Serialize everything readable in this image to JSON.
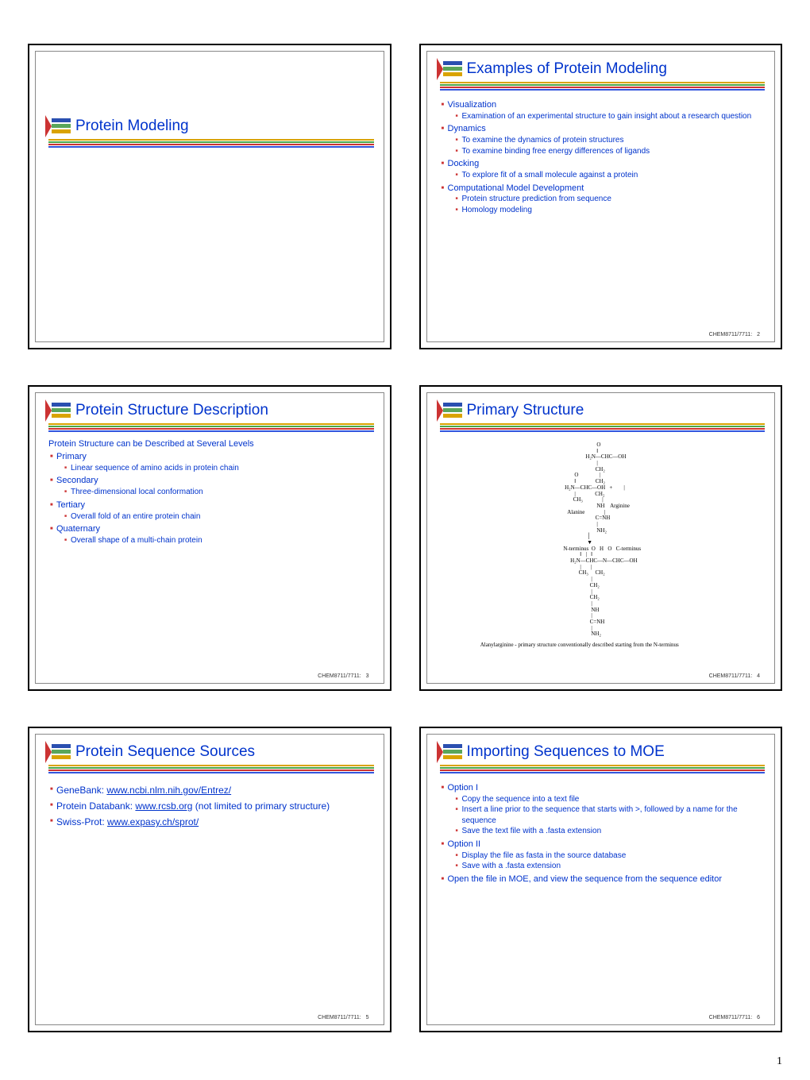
{
  "page_number": "1",
  "course_code": "CHEM8711/7711:",
  "theme": {
    "title_color": "#0033cc",
    "bullet_color": "#cc3333",
    "body_text_color": "#0033cc",
    "slide_border_color": "#000000",
    "inner_border_color": "#888888",
    "background": "#ffffff",
    "rule_colors": [
      "#d9a300",
      "#4aa64a",
      "#cc3333",
      "#3355dd"
    ],
    "title_fontsize": 19,
    "body_fontsize": 11,
    "sub_fontsize": 10,
    "footer_fontsize": 7
  },
  "logo": {
    "stripe_colors": [
      "#2a4fb0",
      "#5aa65a",
      "#d9a300"
    ],
    "caret_color": "#cc3333"
  },
  "slides": [
    {
      "num": "",
      "title": "Protein Modeling",
      "title_only": true
    },
    {
      "num": "2",
      "title": "Examples of Protein Modeling",
      "bullets": [
        {
          "lvl": 1,
          "text": "Visualization"
        },
        {
          "lvl": 2,
          "text": "Examination of an experimental structure to gain insight about a research question"
        },
        {
          "lvl": 1,
          "text": "Dynamics"
        },
        {
          "lvl": 2,
          "text": "To examine the dynamics of protein structures"
        },
        {
          "lvl": 2,
          "text": "To examine binding free energy differences of ligands"
        },
        {
          "lvl": 1,
          "text": "Docking"
        },
        {
          "lvl": 2,
          "text": "To explore fit of a small molecule against a protein"
        },
        {
          "lvl": 1,
          "text": "Computational Model Development"
        },
        {
          "lvl": 2,
          "text": "Protein structure prediction from sequence"
        },
        {
          "lvl": 2,
          "text": "Homology modeling"
        }
      ]
    },
    {
      "num": "3",
      "title": "Protein Structure Description",
      "subtitle": "Protein Structure can be Described at Several Levels",
      "bullets": [
        {
          "lvl": 1,
          "text": "Primary"
        },
        {
          "lvl": 2,
          "text": "Linear sequence of amino acids in protein chain"
        },
        {
          "lvl": 1,
          "text": "Secondary"
        },
        {
          "lvl": 2,
          "text": "Three-dimensional local conformation"
        },
        {
          "lvl": 1,
          "text": "Tertiary"
        },
        {
          "lvl": 2,
          "text": "Overall fold of an entire protein chain"
        },
        {
          "lvl": 1,
          "text": "Quaternary"
        },
        {
          "lvl": 2,
          "text": "Overall shape of a multi-chain protein"
        }
      ]
    },
    {
      "num": "4",
      "title": "Primary Structure",
      "chem": {
        "alanine_label": "Alanine",
        "arginine_label": "Arginine",
        "n_term": "N-terminus",
        "c_term": "C-terminus",
        "caption": "Alanylarginine - primary structure conventionally described starting from the N-terminus",
        "ascii": [
          "                        O",
          "                        ‖",
          "                H₂N—CHC—OH",
          "                        |",
          "                       CH₂",
          "        O               |",
          "        ‖              CH₂",
          " H₂N—CHC—OH   +        |",
          "        |              CH₂",
          "       CH₃              |",
          "                        NH    Arginine",
          "   Alanine              |",
          "                       C=NH",
          "                        |",
          "                        NH₂",
          "                 │",
          "                 ▼",
          "N-terminus  O   H   O   C-terminus",
          "            ‖   |   ‖",
          "     H₂N—CHC—N—CHC—OH",
          "            |       |",
          "           CH₃     CH₂",
          "                    |",
          "                   CH₂",
          "                    |",
          "                   CH₂",
          "                    |",
          "                    NH",
          "                    |",
          "                   C=NH",
          "                    |",
          "                    NH₂"
        ]
      }
    },
    {
      "num": "5",
      "title": "Protein Sequence Sources",
      "bullets_rich": [
        {
          "lvl": 1,
          "pre": "GeneBank:  ",
          "link": "www.ncbi.nlm.nih.gov/Entrez/",
          "post": ""
        },
        {
          "lvl": 1,
          "pre": "Protein Databank:  ",
          "link": "www.rcsb.org",
          "post": " (not limited to primary structure)"
        },
        {
          "lvl": 1,
          "pre": "Swiss-Prot:  ",
          "link": "www.expasy.ch/sprot/",
          "post": ""
        }
      ]
    },
    {
      "num": "6",
      "title": "Importing Sequences to MOE",
      "bullets": [
        {
          "lvl": 1,
          "text": "Option I"
        },
        {
          "lvl": 2,
          "text": "Copy the sequence into a text file"
        },
        {
          "lvl": 2,
          "text": "Insert a line prior to the sequence that starts with >, followed by a name for the sequence"
        },
        {
          "lvl": 2,
          "text": "Save the text file with a .fasta extension"
        },
        {
          "lvl": 1,
          "text": "Option II"
        },
        {
          "lvl": 2,
          "text": "Display the file as fasta in the source database"
        },
        {
          "lvl": 2,
          "text": "Save with a .fasta extension"
        },
        {
          "lvl": 1,
          "text": "Open the file in MOE, and view the sequence from the sequence editor"
        }
      ]
    }
  ]
}
